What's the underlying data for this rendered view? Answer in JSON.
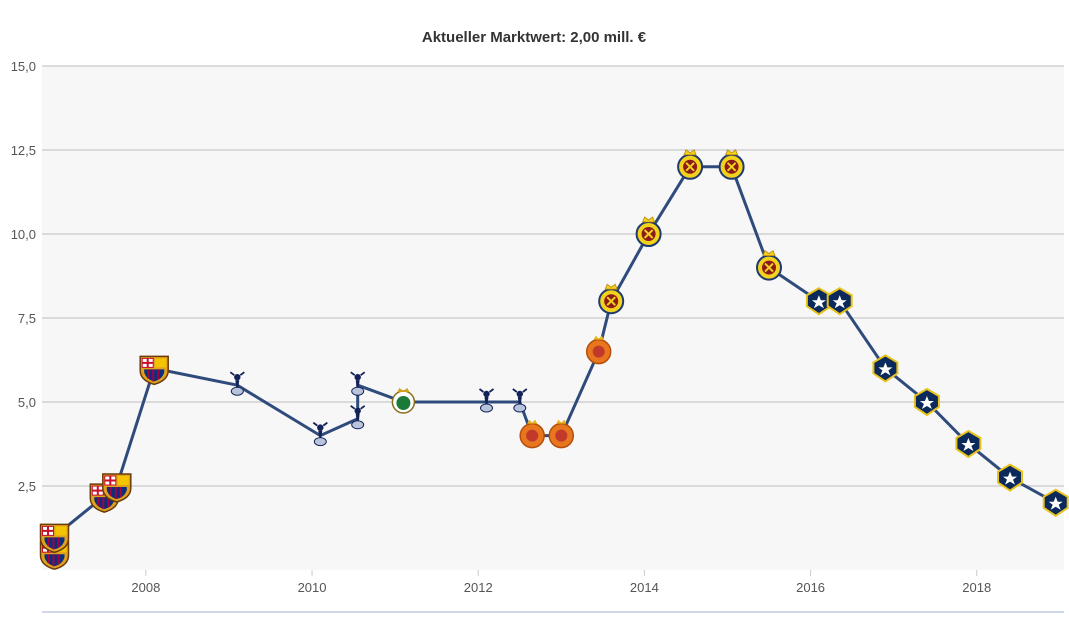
{
  "chart_data": {
    "type": "line",
    "title": "Aktueller Marktwert: 2,00 mill. €",
    "xlabel": "",
    "ylabel": "",
    "x_ticks": [
      "2008",
      "2010",
      "2012",
      "2014",
      "2016",
      "2018"
    ],
    "y_ticks": [
      "2,5",
      "5,0",
      "7,5",
      "10,0",
      "12,5",
      "15,0"
    ],
    "xlim": [
      2006.75,
      2019.05
    ],
    "ylim": [
      0,
      15
    ],
    "grid": true,
    "legend": "none",
    "series": [
      {
        "values": [
          {
            "x": 2006.9,
            "y": 0.5,
            "club": "fc-barcelona"
          },
          {
            "x": 2006.9,
            "y": 1.0,
            "club": "fc-barcelona"
          },
          {
            "x": 2007.5,
            "y": 2.2,
            "club": "fc-barcelona"
          },
          {
            "x": 2007.65,
            "y": 2.5,
            "club": "fc-barcelona"
          },
          {
            "x": 2008.1,
            "y": 6.0,
            "club": "fc-barcelona"
          },
          {
            "x": 2009.1,
            "y": 5.5,
            "club": "tottenham"
          },
          {
            "x": 2010.1,
            "y": 4.0,
            "club": "tottenham"
          },
          {
            "x": 2010.55,
            "y": 4.5,
            "club": "tottenham"
          },
          {
            "x": 2010.55,
            "y": 5.5,
            "club": "tottenham"
          },
          {
            "x": 2011.1,
            "y": 5.0,
            "club": "racing-santander"
          },
          {
            "x": 2012.1,
            "y": 5.0,
            "club": "tottenham"
          },
          {
            "x": 2012.5,
            "y": 5.0,
            "club": "tottenham"
          },
          {
            "x": 2012.65,
            "y": 4.0,
            "club": "rcd-mallorca"
          },
          {
            "x": 2013.0,
            "y": 4.0,
            "club": "rcd-mallorca"
          },
          {
            "x": 2013.45,
            "y": 6.5,
            "club": "rcd-mallorca"
          },
          {
            "x": 2013.6,
            "y": 8.0,
            "club": "villarreal"
          },
          {
            "x": 2014.05,
            "y": 10.0,
            "club": "villarreal"
          },
          {
            "x": 2014.55,
            "y": 12.0,
            "club": "villarreal"
          },
          {
            "x": 2015.05,
            "y": 12.0,
            "club": "villarreal"
          },
          {
            "x": 2015.5,
            "y": 9.0,
            "club": "villarreal"
          },
          {
            "x": 2016.1,
            "y": 8.0,
            "club": "la-galaxy"
          },
          {
            "x": 2016.35,
            "y": 8.0,
            "club": "la-galaxy"
          },
          {
            "x": 2016.9,
            "y": 6.0,
            "club": "la-galaxy"
          },
          {
            "x": 2017.4,
            "y": 5.0,
            "club": "la-galaxy"
          },
          {
            "x": 2017.9,
            "y": 3.75,
            "club": "la-galaxy"
          },
          {
            "x": 2018.4,
            "y": 2.75,
            "club": "la-galaxy"
          },
          {
            "x": 2018.95,
            "y": 2.0,
            "club": "la-galaxy"
          }
        ]
      }
    ],
    "colors": {
      "line": "#2f4b7c",
      "grid": "#d0d0d0",
      "plot_bg": "#f7f7f7",
      "fc-barcelona": "#a50044",
      "tottenham": "#132257",
      "racing-santander": "#1b7a3a",
      "rcd-mallorca": "#e8761e",
      "villarreal": "#f3d11c",
      "la-galaxy": "#0b2a5b"
    }
  }
}
